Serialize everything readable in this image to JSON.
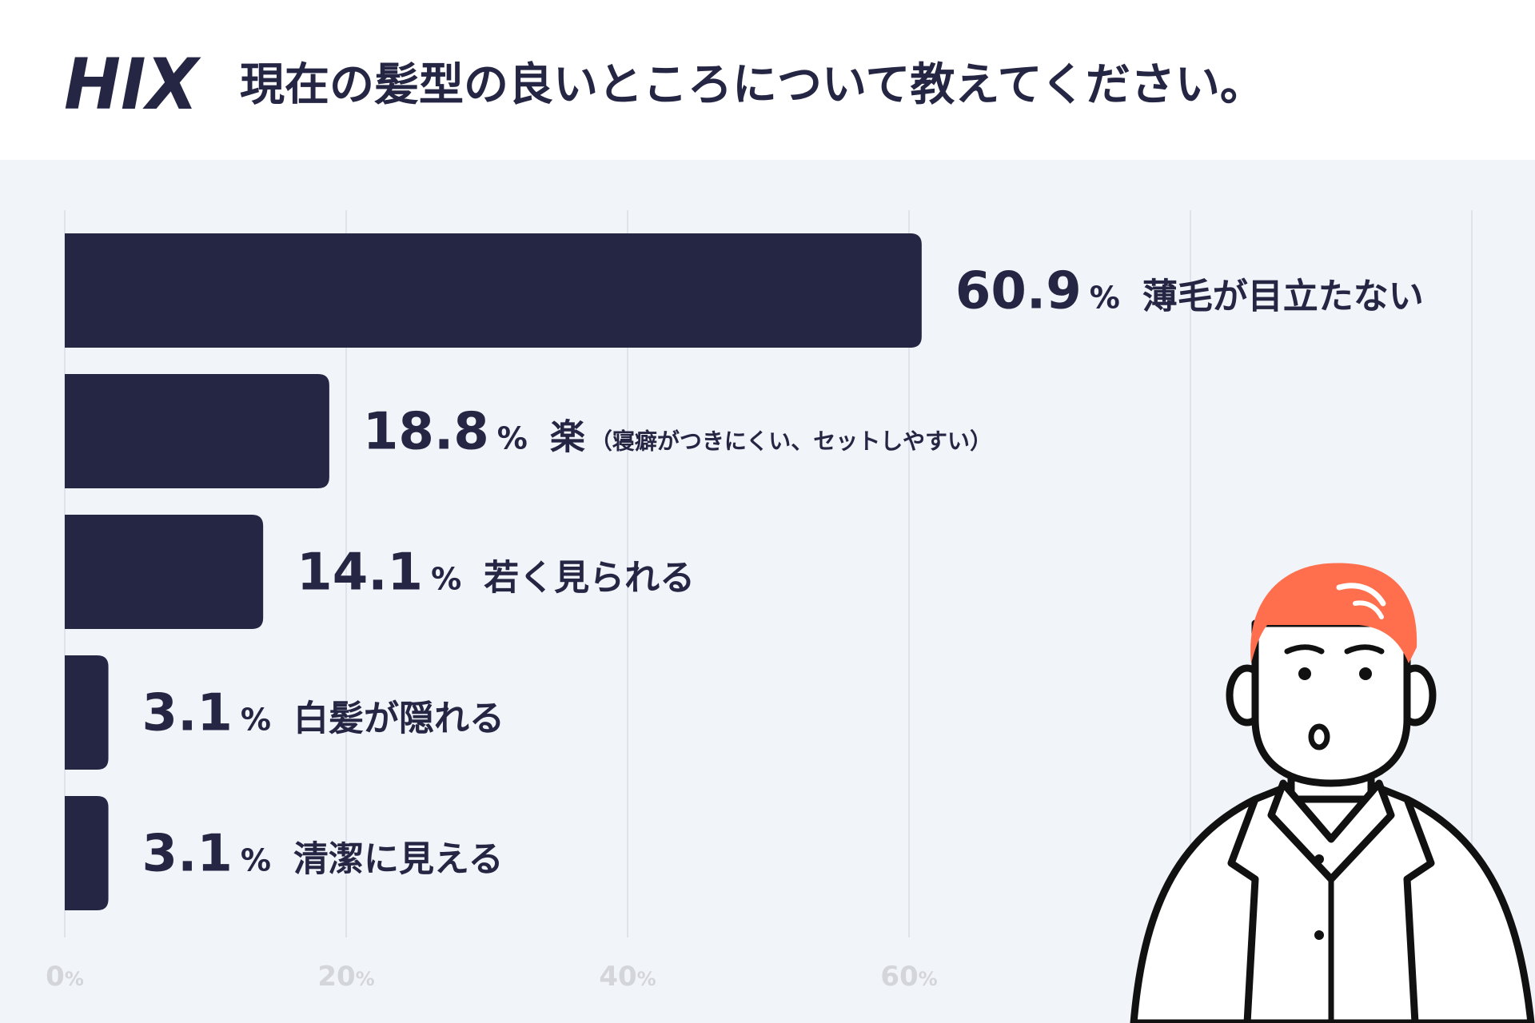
{
  "header": {
    "logo_text": "HIX",
    "title": "現在の髪型の良いところについて教えてください。"
  },
  "colors": {
    "bar": "#252643",
    "text": "#252643",
    "grid": "#dfe3ea",
    "tick": "#d3d5db",
    "background": "#f1f4f9",
    "header_bg": "#ffffff",
    "hair": "#ff6f4d"
  },
  "chart_data": {
    "type": "bar",
    "orientation": "horizontal",
    "title": "現在の髪型の良いところについて教えてください。",
    "unit": "%",
    "xlim": [
      0,
      100
    ],
    "x_ticks": [
      0,
      20,
      40,
      60
    ],
    "grid": true,
    "categories": [
      "薄毛が目立たない",
      "楽",
      "若く見られる",
      "白髪が隠れる",
      "清潔に見える"
    ],
    "category_notes": [
      "",
      "（寝癖がつきにくい、セットしやすい）",
      "",
      "",
      ""
    ],
    "values": [
      60.9,
      18.8,
      14.1,
      3.1,
      3.1
    ]
  },
  "illustration": {
    "icon": "man-in-white-coat-illustration"
  }
}
